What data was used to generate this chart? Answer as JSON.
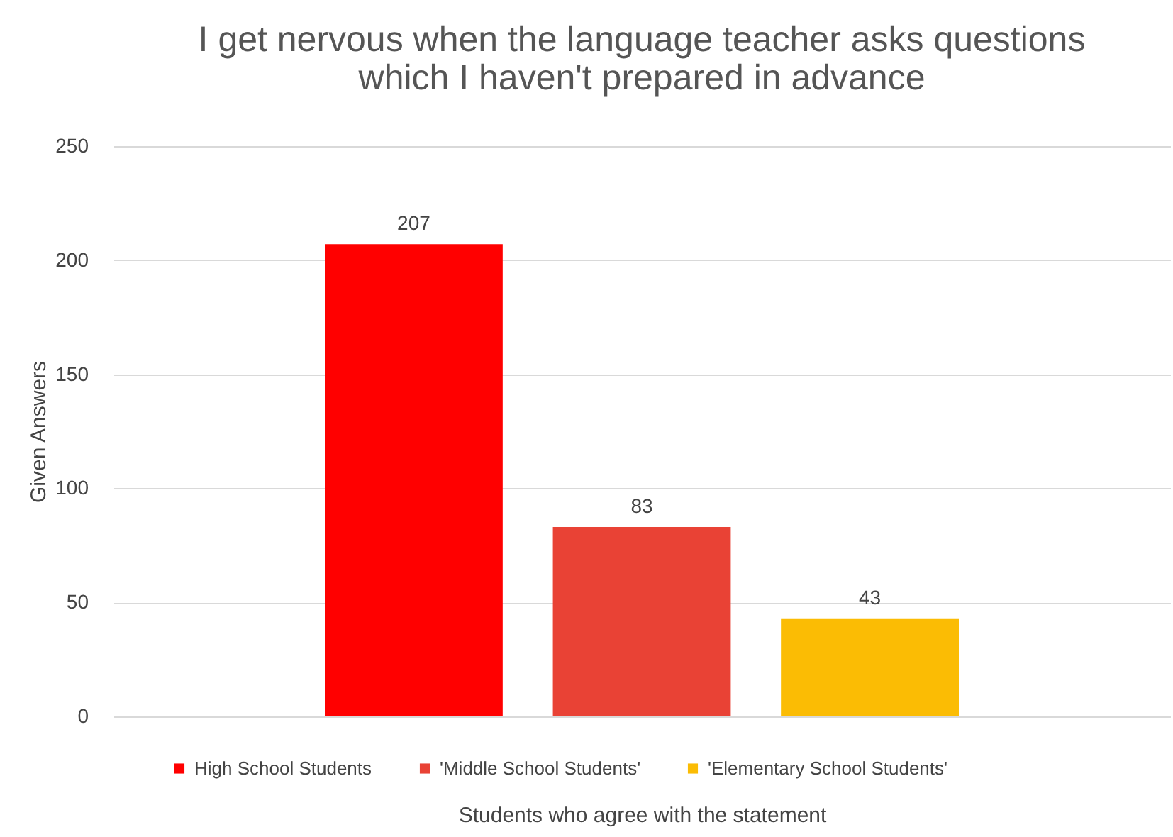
{
  "chart_data": {
    "type": "bar",
    "title": "I get nervous when the language teacher asks questions\nwhich I haven't prepared in advance",
    "xlabel": "Students who agree with the statement",
    "ylabel": "Given Answers",
    "categories": [
      null
    ],
    "series": [
      {
        "name": "High School Students",
        "color": "#ff0000",
        "values": [
          207
        ]
      },
      {
        "name": "'Middle School Students'",
        "color": "#e94235",
        "values": [
          83
        ]
      },
      {
        "name": "'Elementary School Students'",
        "color": "#fbbc04",
        "values": [
          43
        ]
      }
    ],
    "ylim": [
      0,
      250
    ],
    "yticks": [
      0,
      50,
      100,
      150,
      200,
      250
    ],
    "grid": "y",
    "legend": "bottom",
    "data_labels": true,
    "tick_labels": "y"
  }
}
